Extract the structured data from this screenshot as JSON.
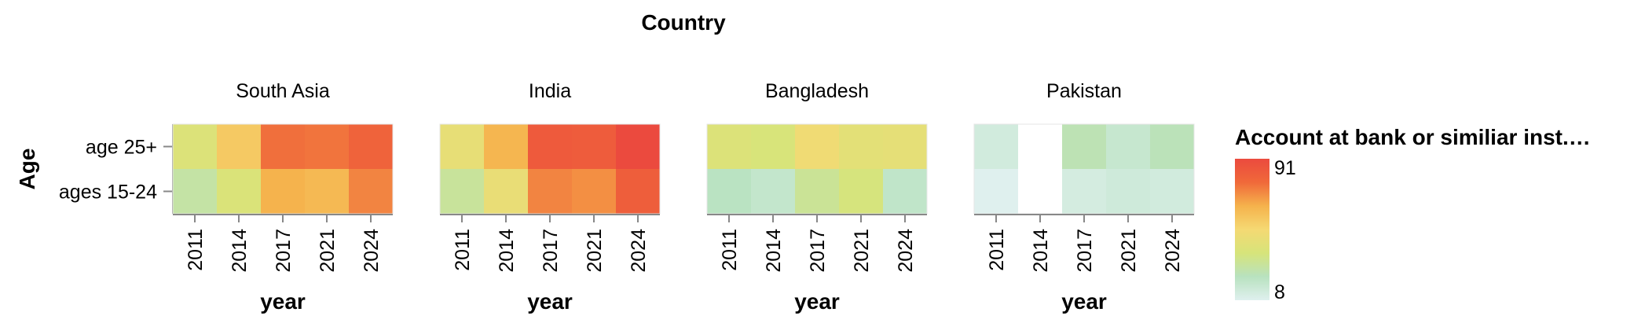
{
  "chart_data": {
    "type": "heatmap",
    "title": "Country",
    "xlabel": "year",
    "ylabel": "Age",
    "x": [
      "2011",
      "2014",
      "2017",
      "2021",
      "2024"
    ],
    "y": [
      "age 25+",
      "ages 15-24"
    ],
    "facets": [
      {
        "name": "South Asia",
        "rows": [
          {
            "label": "age 25+",
            "values": [
              38,
              55,
              76,
              75,
              80
            ]
          },
          {
            "label": "ages 15-24",
            "values": [
              27,
              37,
              63,
              61,
              72
            ]
          }
        ]
      },
      {
        "name": "India",
        "rows": [
          {
            "label": "age 25+",
            "values": [
              43,
              62,
              84,
              83,
              91
            ]
          },
          {
            "label": "ages 15-24",
            "values": [
              29,
              44,
              72,
              70,
              82
            ]
          }
        ]
      },
      {
        "name": "Bangladesh",
        "rows": [
          {
            "label": "age 25+",
            "values": [
              38,
              36,
              47,
              41,
              42
            ]
          },
          {
            "label": "ages 15-24",
            "values": [
              21,
              18,
              30,
              35,
              19
            ]
          }
        ]
      },
      {
        "name": "Pakistan",
        "rows": [
          {
            "label": "age 25+",
            "values": [
              13,
              null,
              24,
              17,
              23
            ]
          },
          {
            "label": "ages 15-24",
            "values": [
              8,
              null,
              12,
              14,
              13
            ]
          }
        ]
      }
    ],
    "legend": {
      "title": "Account at bank or similiar inst.…",
      "min": 8,
      "max": 91,
      "min_label": "8",
      "max_label": "91",
      "placement": "right"
    },
    "color_scale": [
      "#dff0ee",
      "#b8e2bf",
      "#d7e47a",
      "#f5d973",
      "#f5b24c",
      "#f0693a",
      "#eb4a3e"
    ],
    "missing_color": "#ffffff"
  }
}
